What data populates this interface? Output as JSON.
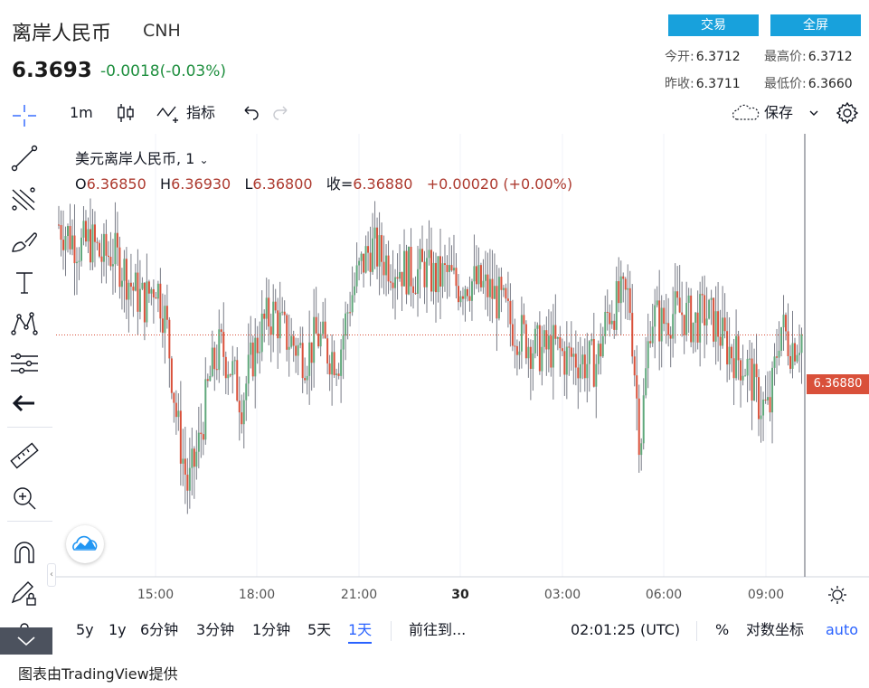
{
  "header": {
    "title": "离岸人民币",
    "code": "CNH",
    "price": "6.3693",
    "change": "-0.0018(-0.03%)",
    "trade_button": "交易",
    "fullscreen_button": "全屏",
    "stats": {
      "open_label": "今开:",
      "open_value": "6.3712",
      "high_label": "最高价:",
      "high_value": "6.3712",
      "prevclose_label": "昨收:",
      "prevclose_value": "6.3711",
      "low_label": "最低价:",
      "low_value": "6.3660"
    }
  },
  "toolbar": {
    "interval": "1m",
    "indicators": "指标",
    "save": "保存"
  },
  "legend": {
    "symbol": "美元离岸人民币, 1",
    "o_label": "O",
    "o_value": "6.36850",
    "h_label": "H",
    "h_value": "6.36930",
    "l_label": "L",
    "l_value": "6.36800",
    "c_label": "收=",
    "c_value": "6.36880",
    "chg": "+0.00020 (+0.00%)"
  },
  "price_tag": "6.36880",
  "x_axis": [
    "15:00",
    "18:00",
    "21:00",
    "30",
    "03:00",
    "06:00",
    "09:00"
  ],
  "bottombar": {
    "ranges": [
      "5y",
      "1y",
      "6分钟",
      "3分钟",
      "1分钟",
      "5天",
      "1天"
    ],
    "goto": "前往到...",
    "time": "02:01:25 (UTC)",
    "percent": "%",
    "log": "对数坐标",
    "auto": "auto"
  },
  "footer": "图表由TradingView提供",
  "colors": {
    "accent": "#18a1dc",
    "up": "#5fa87b",
    "down": "#d9503a",
    "wick": "#787b86",
    "price_line": "#d9503a"
  },
  "chart_data": {
    "type": "candlestick",
    "x_ticks": [
      "15:00",
      "18:00",
      "21:00",
      "30",
      "03:00",
      "06:00",
      "09:00"
    ],
    "last_price": 6.3688,
    "series_trend_y": [
      6.3708,
      6.3706,
      6.3704,
      6.3705,
      6.3702,
      6.3703,
      6.37,
      6.3696,
      6.3694,
      6.3698,
      6.369,
      6.3672,
      6.366,
      6.3668,
      6.368,
      6.3686,
      6.3682,
      6.3676,
      6.3684,
      6.369,
      6.3692,
      6.3688,
      6.3686,
      6.3684,
      6.3688,
      6.3685,
      6.3684,
      6.3694,
      6.37,
      6.3704,
      6.3702,
      6.3701,
      6.37,
      6.3699,
      6.37,
      6.3698,
      6.3699,
      6.3697,
      6.3698,
      6.3697,
      6.3696,
      6.3694,
      6.369,
      6.3688,
      6.3686,
      6.3685,
      6.3686,
      6.3684,
      6.3684,
      6.3683,
      6.3683,
      6.3692,
      6.3694,
      6.3695,
      6.3668,
      6.3692,
      6.369,
      6.3692,
      6.3692,
      6.369,
      6.3692,
      6.369,
      6.3686,
      6.3684,
      6.3682,
      6.3676,
      6.3674,
      6.369,
      6.3686,
      6.3688
    ]
  }
}
